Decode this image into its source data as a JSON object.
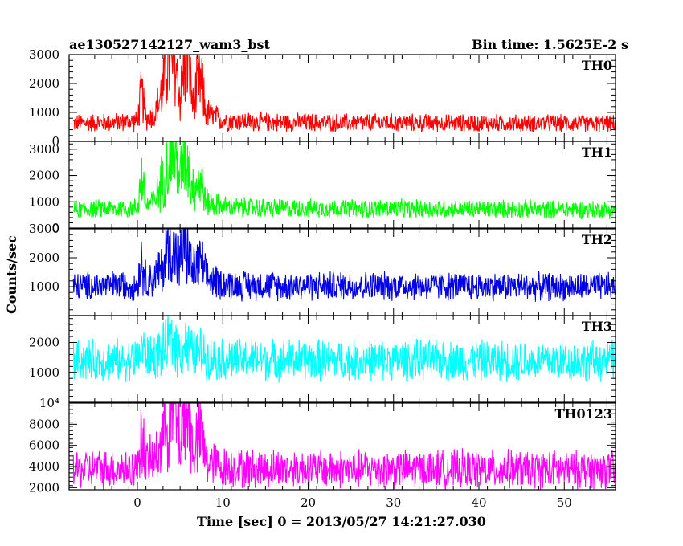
{
  "chart_data": {
    "type": "line",
    "title": "ae130527142127_wam3_bst",
    "bin_time_label": "Bin time: 1.5625E-2 s",
    "xlabel": "Time [sec] 0 = 2013/05/27 14:21:27.030",
    "ylabel": "Counts/sec",
    "xlim": [
      -8,
      56
    ],
    "xticks": [
      0,
      10,
      20,
      30,
      40,
      50
    ],
    "xtick_labels": [
      "0",
      "10",
      "20",
      "30",
      "40",
      "50"
    ],
    "panels": [
      {
        "name": "TH0",
        "color": "#ff0000",
        "ylim": [
          0,
          3000
        ],
        "yticks": [
          0,
          1000,
          2000,
          3000
        ],
        "ytick_labels": [
          "0",
          "1000",
          "2000",
          "3000"
        ],
        "baseline": 600,
        "x": [
          -8,
          -6,
          -4,
          -2,
          0,
          0.5,
          1,
          2,
          3,
          3.5,
          4,
          4.5,
          5,
          5.5,
          6,
          6.5,
          7,
          7.5,
          8,
          9,
          10,
          12,
          15,
          20,
          25,
          30,
          35,
          40,
          45,
          50,
          56
        ],
        "y": [
          620,
          640,
          650,
          660,
          700,
          1700,
          800,
          900,
          1800,
          2800,
          2400,
          2600,
          1500,
          2700,
          2800,
          1200,
          1800,
          2000,
          1000,
          850,
          720,
          680,
          660,
          650,
          640,
          640,
          630,
          630,
          620,
          620,
          610
        ]
      },
      {
        "name": "TH1",
        "color": "#00ff00",
        "ylim": [
          0,
          3300
        ],
        "yticks": [
          0,
          1000,
          2000,
          3000
        ],
        "ytick_labels": [
          "0",
          "1000",
          "2000",
          "3000"
        ],
        "baseline": 700,
        "x": [
          -8,
          -6,
          -4,
          -2,
          0,
          0.5,
          1,
          2,
          3,
          3.5,
          4,
          4.5,
          5,
          5.5,
          6,
          6.5,
          7,
          7.5,
          8,
          9,
          10,
          12,
          15,
          20,
          25,
          30,
          35,
          40,
          45,
          50,
          56
        ],
        "y": [
          700,
          720,
          730,
          740,
          760,
          2000,
          900,
          1000,
          1900,
          2300,
          2900,
          2700,
          1800,
          3100,
          2400,
          1500,
          1700,
          1800,
          1000,
          900,
          820,
          780,
          760,
          740,
          740,
          730,
          730,
          720,
          720,
          710,
          700
        ]
      },
      {
        "name": "TH2",
        "color": "#0000e6",
        "ylim": [
          0,
          3000
        ],
        "yticks": [
          0,
          1000,
          2000,
          3000
        ],
        "ytick_labels": [
          "",
          "1000",
          "2000",
          "3000"
        ],
        "baseline": 1000,
        "x": [
          -8,
          -6,
          -4,
          -2,
          0,
          0.5,
          1,
          2,
          3,
          3.5,
          4,
          4.5,
          5,
          5.5,
          6,
          6.5,
          7,
          7.5,
          8,
          9,
          10,
          12,
          15,
          20,
          25,
          30,
          35,
          40,
          45,
          50,
          56
        ],
        "y": [
          1000,
          1020,
          1030,
          1040,
          1050,
          2000,
          1200,
          1300,
          1700,
          2300,
          2400,
          2200,
          1800,
          2500,
          2100,
          1500,
          1700,
          1800,
          1300,
          1200,
          1100,
          1050,
          1040,
          1030,
          1030,
          1020,
          1020,
          1010,
          1010,
          1000,
          1000
        ]
      },
      {
        "name": "TH3",
        "color": "#00ffff",
        "ylim": [
          0,
          2900
        ],
        "yticks": [
          1000,
          2000
        ],
        "ytick_labels": [
          "1000",
          "2000"
        ],
        "baseline": 1400,
        "x": [
          -8,
          -6,
          -4,
          -2,
          0,
          0.5,
          1,
          2,
          3,
          3.5,
          4,
          4.5,
          5,
          5.5,
          6,
          6.5,
          7,
          7.5,
          8,
          9,
          10,
          12,
          15,
          20,
          25,
          30,
          35,
          40,
          45,
          50,
          56
        ],
        "y": [
          1400,
          1410,
          1420,
          1420,
          1430,
          1900,
          1500,
          1550,
          1700,
          1900,
          2000,
          1900,
          1700,
          2000,
          1800,
          1600,
          1650,
          1700,
          1500,
          1450,
          1440,
          1430,
          1420,
          1420,
          1410,
          1410,
          1400,
          1400,
          1400,
          1400,
          1390
        ]
      },
      {
        "name": "TH0123",
        "color": "#ff00ff",
        "ylim": [
          1800,
          10000
        ],
        "yticks": [
          2000,
          4000,
          6000,
          8000,
          10000
        ],
        "ytick_labels": [
          "2000",
          "4000",
          "6000",
          "8000",
          "10⁴"
        ],
        "baseline": 3700,
        "x": [
          -8,
          -6,
          -4,
          -2,
          0,
          0.5,
          1,
          2,
          3,
          3.5,
          4,
          4.5,
          5,
          5.5,
          6,
          6.5,
          7,
          7.5,
          8,
          9,
          10,
          12,
          15,
          20,
          25,
          30,
          35,
          40,
          45,
          50,
          56
        ],
        "y": [
          3700,
          3750,
          3800,
          3800,
          3850,
          7500,
          4300,
          4600,
          6800,
          9000,
          9500,
          8800,
          6500,
          9600,
          8800,
          5500,
          6500,
          7000,
          4600,
          4200,
          3950,
          3850,
          3800,
          3780,
          3760,
          3750,
          3740,
          3730,
          3720,
          3710,
          3700
        ]
      }
    ]
  }
}
